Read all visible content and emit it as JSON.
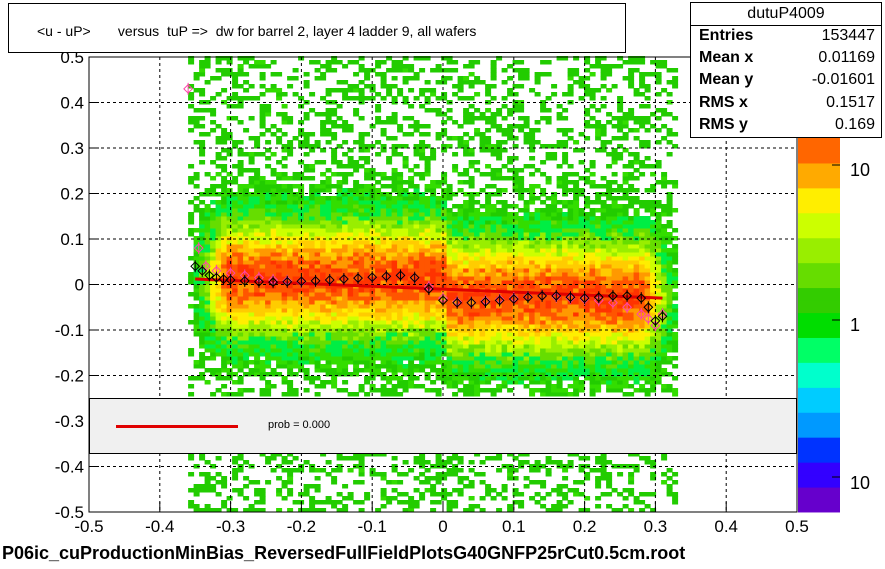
{
  "chart_data": {
    "type": "heatmap",
    "title": "<u - uP>       versus  tuP =>  dw for barrel 2, layer 4 ladder 9, all wafers",
    "xlim": [
      -0.5,
      0.5
    ],
    "ylim": [
      -0.5,
      0.5
    ],
    "x_ticks": [
      "-0.5",
      "-0.4",
      "-0.3",
      "-0.2",
      "-0.1",
      "0",
      "0.1",
      "0.2",
      "0.3",
      "0.4",
      "0.5"
    ],
    "y_ticks": [
      "-0.5",
      "-0.4",
      "-0.3",
      "-0.2",
      "-0.1",
      "0",
      "0.1",
      "0.2",
      "0.3",
      "0.4",
      "0.5"
    ],
    "grid": true,
    "colorbar_ticks": [
      "10",
      "1",
      "10"
    ],
    "colorbar_colors": [
      "#6600cc",
      "#3300ff",
      "#0033ff",
      "#0099ff",
      "#00ccff",
      "#00ffcc",
      "#00ff66",
      "#00dd00",
      "#33cc00",
      "#66dd00",
      "#99ee00",
      "#ccff00",
      "#ffee00",
      "#ffaa00",
      "#ff6600"
    ],
    "profile_black": {
      "x": [
        -0.35,
        -0.34,
        -0.33,
        -0.32,
        -0.31,
        -0.3,
        -0.28,
        -0.26,
        -0.24,
        -0.22,
        -0.2,
        -0.18,
        -0.16,
        -0.14,
        -0.12,
        -0.1,
        -0.08,
        -0.06,
        -0.04,
        -0.02,
        0.0,
        0.02,
        0.04,
        0.06,
        0.08,
        0.1,
        0.12,
        0.14,
        0.16,
        0.18,
        0.2,
        0.22,
        0.24,
        0.26,
        0.28,
        0.29,
        0.3,
        0.31
      ],
      "y": [
        0.04,
        0.03,
        0.02,
        0.015,
        0.012,
        0.01,
        0.008,
        0.006,
        0.005,
        0.006,
        0.007,
        0.008,
        0.01,
        0.012,
        0.014,
        0.016,
        0.018,
        0.02,
        0.015,
        -0.01,
        -0.035,
        -0.04,
        -0.04,
        -0.038,
        -0.035,
        -0.032,
        -0.028,
        -0.025,
        -0.025,
        -0.028,
        -0.03,
        -0.028,
        -0.025,
        -0.025,
        -0.03,
        -0.05,
        -0.08,
        -0.07
      ]
    },
    "profile_pink": {
      "x": [
        -0.36,
        -0.345,
        -0.335,
        -0.32,
        -0.3,
        -0.28,
        -0.26,
        -0.24,
        -0.22,
        -0.2,
        -0.18,
        -0.16,
        -0.14,
        -0.12,
        -0.1,
        -0.08,
        -0.06,
        -0.04,
        -0.02,
        0.0,
        0.02,
        0.04,
        0.06,
        0.08,
        0.1,
        0.12,
        0.14,
        0.16,
        0.18,
        0.2,
        0.22,
        0.24,
        0.26,
        0.28,
        0.29,
        0.3,
        0.31
      ],
      "y": [
        0.43,
        0.08,
        0.04,
        0.03,
        0.025,
        0.02,
        0.015,
        0.01,
        0.008,
        0.006,
        0.008,
        0.01,
        0.012,
        0.014,
        0.016,
        0.018,
        0.02,
        0.015,
        -0.005,
        -0.03,
        -0.038,
        -0.04,
        -0.036,
        -0.033,
        -0.03,
        -0.027,
        -0.025,
        -0.027,
        -0.03,
        -0.032,
        -0.035,
        -0.04,
        -0.05,
        -0.065,
        -0.075,
        -0.09,
        -0.065
      ]
    },
    "fit_line": {
      "x": [
        -0.35,
        0.31
      ],
      "y": [
        0.012,
        -0.03
      ]
    },
    "legend": {
      "label": "prob = 0.000",
      "placement": "inside-bottom"
    }
  },
  "stats": {
    "name": "dutuP4009",
    "rows": [
      {
        "key": "Entries",
        "value": "153447"
      },
      {
        "key": "Mean x",
        "value": "0.01169"
      },
      {
        "key": "Mean y",
        "value": "-0.01601"
      },
      {
        "key": "RMS x",
        "value": "0.1517"
      },
      {
        "key": "RMS y",
        "value": "0.169"
      }
    ]
  },
  "footer": "P06ic_cuProductionMinBias_ReversedFullFieldPlotsG40GNFP25rCut0.5cm.root",
  "colors": {
    "fit": "#e00000",
    "profile_black": "#000000",
    "profile_pink": "#ff44aa",
    "legend_bg": "#f0f0f0"
  }
}
